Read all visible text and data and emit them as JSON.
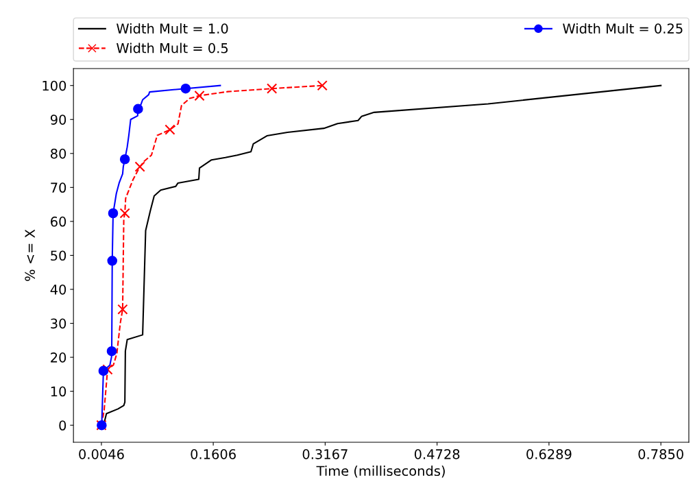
{
  "chart_data": {
    "type": "line",
    "xlabel": "Time (milliseconds)",
    "ylabel": "% <= X",
    "xlim": [
      -0.0344,
      0.824
    ],
    "ylim": [
      -5,
      105
    ],
    "xticks": [
      0.0046,
      0.1606,
      0.3167,
      0.4728,
      0.6289,
      {
        "value": 0.785,
        "label": "0.7850"
      }
    ],
    "yticks": [
      0,
      10,
      20,
      30,
      40,
      50,
      60,
      70,
      80,
      90,
      100
    ],
    "grid": false,
    "legend": "top",
    "series": [
      {
        "name": "Width Mult = 1.0",
        "color": "#000000",
        "line_style": "solid",
        "x": [
          0.0055,
          0.0084,
          0.0116,
          0.0277,
          0.0358,
          0.0373,
          0.038,
          0.0406,
          0.0621,
          0.0663,
          0.0728,
          0.0782,
          0.0873,
          0.1082,
          0.1114,
          0.1404,
          0.1414,
          0.1582,
          0.1775,
          0.1942,
          0.2132,
          0.2164,
          0.2355,
          0.2641,
          0.3149,
          0.334,
          0.3626,
          0.3674,
          0.385,
          0.5439,
          0.785
        ],
        "values": [
          0,
          0.7,
          3.4,
          4.8,
          5.8,
          6.8,
          21.8,
          25.2,
          26.6,
          57.3,
          63.1,
          67.5,
          69.2,
          70.3,
          71.3,
          72.4,
          75.7,
          78.1,
          78.8,
          79.5,
          80.5,
          82.8,
          85.2,
          86.2,
          87.4,
          88.8,
          89.7,
          90.9,
          92.1,
          94.6,
          100
        ]
      },
      {
        "name": "Width Mult = 0.5",
        "color": "#ff0000",
        "line_style": "dashed",
        "x": [
          0.0046,
          0.0084,
          0.0132,
          0.0213,
          0.0261,
          0.0309,
          0.0342,
          0.0358,
          0.0373,
          0.0384,
          0.0487,
          0.0583,
          0.0647,
          0.0744,
          0.0824,
          0.1002,
          0.1114,
          0.1163,
          0.1276,
          0.1414,
          0.1807,
          0.2424,
          0.3127
        ],
        "values": [
          0,
          4.4,
          16.4,
          17.7,
          21.1,
          30.0,
          34.1,
          60.7,
          62.4,
          66.8,
          72.3,
          76.1,
          77.8,
          79.5,
          85.3,
          87.0,
          88.7,
          94.1,
          96.2,
          97.0,
          98.2,
          99.1,
          100
        ]
      },
      {
        "name": "Width Mult = 0.25",
        "color": "#0000ff",
        "line_style": "solid",
        "x": [
          0.005,
          0.0074,
          0.0164,
          0.0187,
          0.019,
          0.0197,
          0.0209,
          0.0228,
          0.0254,
          0.0293,
          0.0342,
          0.0351,
          0.0373,
          0.0406,
          0.0428,
          0.0454,
          0.0551,
          0.0557,
          0.0599,
          0.0621,
          0.0705,
          0.0718,
          0.1221,
          0.1704
        ],
        "values": [
          0,
          16.0,
          17.7,
          20.1,
          21.8,
          48.4,
          62.4,
          64.8,
          68.2,
          71.3,
          74.0,
          76.1,
          78.3,
          81.9,
          85.3,
          90.0,
          91.1,
          93.1,
          94.5,
          95.8,
          97.3,
          98.1,
          99.1,
          100
        ]
      },
      {
        "type": "scatter",
        "color": "#ff0000",
        "marker": "cross",
        "x": [
          0.0046,
          0.0132,
          0.0342,
          0.0373,
          0.0583,
          0.1002,
          0.1414,
          0.2424,
          0.3127
        ],
        "values": [
          0,
          16.4,
          34.1,
          62.4,
          76.1,
          87.0,
          97.0,
          99.1,
          100
        ]
      },
      {
        "type": "scatter",
        "color": "#0000ff",
        "marker": "circle",
        "x": [
          0.005,
          0.0074,
          0.019,
          0.0197,
          0.0209,
          0.0373,
          0.0557,
          0.1221
        ],
        "values": [
          0,
          16.0,
          21.8,
          48.4,
          62.4,
          78.3,
          93.1,
          99.1
        ]
      }
    ]
  }
}
